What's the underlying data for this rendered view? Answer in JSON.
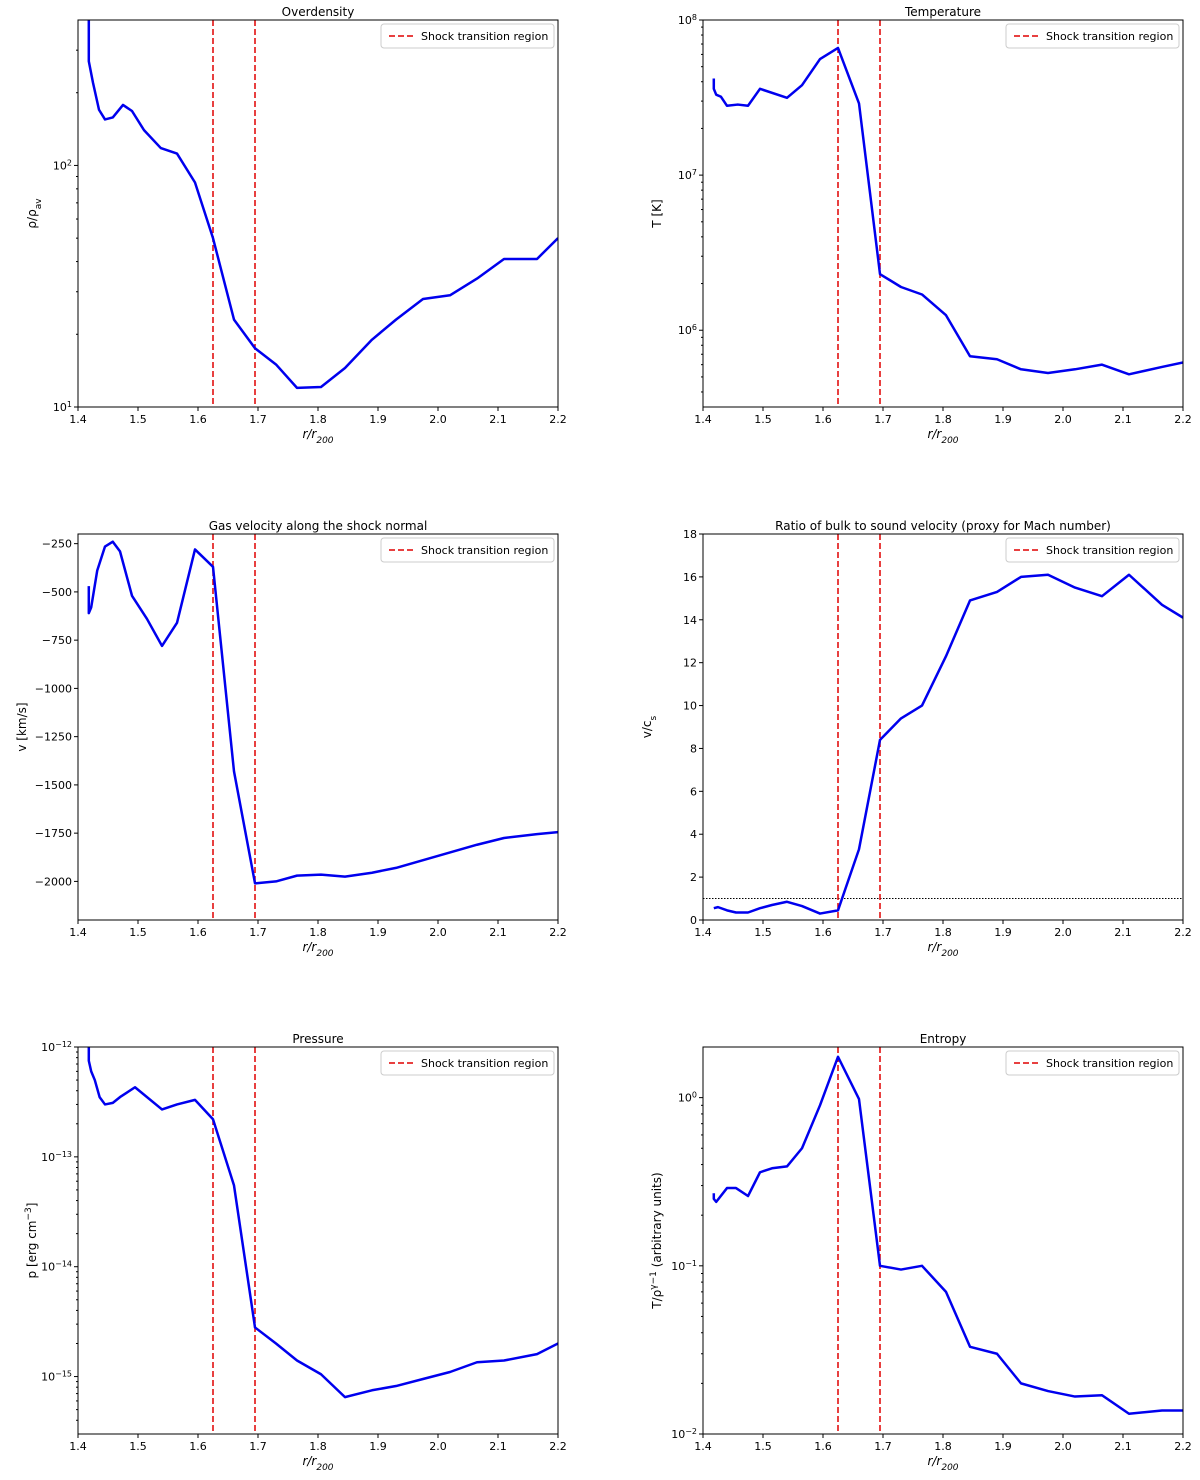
{
  "chart_data": [
    {
      "id": "overdensity",
      "type": "line",
      "title": "Overdensity",
      "xlabel": "r/r_{200}",
      "ylabel": "ρ/ρ_{av}",
      "xscale": "linear",
      "yscale": "log",
      "xlim": [
        1.4,
        2.2
      ],
      "ylim": [
        10,
        400
      ],
      "xticks": [
        1.4,
        1.5,
        1.6,
        1.7,
        1.8,
        1.9,
        2.0,
        2.1,
        2.2
      ],
      "yticks": [
        {
          "value": 10,
          "label": "10^1"
        },
        {
          "value": 100,
          "label": "10^2"
        }
      ],
      "legend": {
        "label": "Shock transition region",
        "placement": "top-right",
        "color": "#e00000"
      },
      "shock_lines": [
        1.625,
        1.695
      ],
      "color": "#0000ee",
      "x": [
        1.418,
        1.418,
        1.425,
        1.435,
        1.445,
        1.458,
        1.475,
        1.49,
        1.51,
        1.538,
        1.565,
        1.595,
        1.625,
        1.66,
        1.695,
        1.73,
        1.765,
        1.805,
        1.845,
        1.89,
        1.93,
        1.975,
        2.02,
        2.065,
        2.11,
        2.165,
        2.2
      ],
      "y": [
        420,
        270,
        220,
        170,
        155,
        158,
        178,
        168,
        140,
        118,
        112,
        85,
        50,
        23,
        17.5,
        15,
        12,
        12.1,
        14.5,
        19,
        23,
        28,
        29,
        34,
        41,
        41,
        50
      ]
    },
    {
      "id": "temperature",
      "type": "line",
      "title": "Temperature",
      "xlabel": "r/r_{200}",
      "ylabel": "T [K]",
      "xscale": "linear",
      "yscale": "log",
      "xlim": [
        1.4,
        2.2
      ],
      "ylim": [
        320000,
        100000000
      ],
      "xticks": [
        1.4,
        1.5,
        1.6,
        1.7,
        1.8,
        1.9,
        2.0,
        2.1,
        2.2
      ],
      "yticks": [
        {
          "value": 1000000,
          "label": "10^6"
        },
        {
          "value": 10000000,
          "label": "10^7"
        },
        {
          "value": 100000000,
          "label": "10^8"
        }
      ],
      "legend": {
        "label": "Shock transition region",
        "placement": "top-right",
        "color": "#e00000"
      },
      "shock_lines": [
        1.625,
        1.695
      ],
      "color": "#0000ee",
      "x": [
        1.418,
        1.418,
        1.422,
        1.43,
        1.44,
        1.458,
        1.475,
        1.495,
        1.54,
        1.565,
        1.595,
        1.625,
        1.66,
        1.695,
        1.73,
        1.765,
        1.805,
        1.845,
        1.89,
        1.93,
        1.975,
        2.02,
        2.065,
        2.11,
        2.165,
        2.2
      ],
      "y": [
        42000000,
        36000000,
        33000000,
        32000000,
        28000000,
        28500000,
        28000000,
        36000000,
        31500000,
        38000000,
        56000000,
        66000000,
        29000000,
        2300000,
        1900000,
        1700000,
        1250000,
        680000,
        650000,
        560000,
        530000,
        560000,
        600000,
        520000,
        580000,
        620000
      ]
    },
    {
      "id": "velocity",
      "type": "line",
      "title": "Gas velocity along the shock normal",
      "xlabel": "r/r_{200}",
      "ylabel": "v [km/s]",
      "xscale": "linear",
      "yscale": "linear",
      "xlim": [
        1.4,
        2.2
      ],
      "ylim": [
        -2200,
        -200
      ],
      "xticks": [
        1.4,
        1.5,
        1.6,
        1.7,
        1.8,
        1.9,
        2.0,
        2.1,
        2.2
      ],
      "yticks": [
        {
          "value": -2000,
          "label": "−2000"
        },
        {
          "value": -1750,
          "label": "−1750"
        },
        {
          "value": -1500,
          "label": "−1500"
        },
        {
          "value": -1250,
          "label": "−1250"
        },
        {
          "value": -1000,
          "label": "−1000"
        },
        {
          "value": -750,
          "label": "−750"
        },
        {
          "value": -500,
          "label": "−500"
        },
        {
          "value": -250,
          "label": "−250"
        }
      ],
      "legend": {
        "label": "Shock transition region",
        "placement": "top-right",
        "color": "#e00000"
      },
      "shock_lines": [
        1.625,
        1.695
      ],
      "color": "#0000ee",
      "x": [
        1.418,
        1.418,
        1.422,
        1.432,
        1.445,
        1.458,
        1.47,
        1.49,
        1.515,
        1.54,
        1.565,
        1.595,
        1.625,
        1.66,
        1.695,
        1.73,
        1.765,
        1.805,
        1.845,
        1.89,
        1.93,
        1.975,
        2.02,
        2.065,
        2.11,
        2.165,
        2.2
      ],
      "y": [
        -470,
        -610,
        -580,
        -390,
        -265,
        -240,
        -290,
        -520,
        -640,
        -780,
        -660,
        -280,
        -370,
        -1430,
        -2010,
        -2000,
        -1970,
        -1965,
        -1975,
        -1955,
        -1930,
        -1890,
        -1850,
        -1810,
        -1775,
        -1755,
        -1745
      ]
    },
    {
      "id": "mach",
      "type": "line",
      "title": "Ratio of bulk to sound velocity (proxy for Mach number)",
      "xlabel": "r/r_{200}",
      "ylabel": "v/c_{s}",
      "xscale": "linear",
      "yscale": "linear",
      "xlim": [
        1.4,
        2.2
      ],
      "ylim": [
        0,
        18
      ],
      "xticks": [
        1.4,
        1.5,
        1.6,
        1.7,
        1.8,
        1.9,
        2.0,
        2.1,
        2.2
      ],
      "yticks": [
        {
          "value": 0,
          "label": "0"
        },
        {
          "value": 2,
          "label": "2"
        },
        {
          "value": 4,
          "label": "4"
        },
        {
          "value": 6,
          "label": "6"
        },
        {
          "value": 8,
          "label": "8"
        },
        {
          "value": 10,
          "label": "10"
        },
        {
          "value": 12,
          "label": "12"
        },
        {
          "value": 14,
          "label": "14"
        },
        {
          "value": 16,
          "label": "16"
        },
        {
          "value": 18,
          "label": "18"
        }
      ],
      "legend": {
        "label": "Shock transition region",
        "placement": "top-right",
        "color": "#e00000"
      },
      "shock_lines": [
        1.625,
        1.695
      ],
      "reference_line": 1.0,
      "color": "#0000ee",
      "x": [
        1.418,
        1.425,
        1.44,
        1.455,
        1.475,
        1.495,
        1.515,
        1.54,
        1.565,
        1.595,
        1.625,
        1.66,
        1.695,
        1.73,
        1.765,
        1.805,
        1.845,
        1.89,
        1.93,
        1.975,
        2.02,
        2.065,
        2.11,
        2.165,
        2.2
      ],
      "y": [
        0.55,
        0.6,
        0.45,
        0.35,
        0.35,
        0.55,
        0.7,
        0.85,
        0.65,
        0.3,
        0.45,
        3.3,
        8.4,
        9.4,
        10.0,
        12.3,
        14.9,
        15.3,
        16.0,
        16.1,
        15.5,
        15.1,
        16.1,
        14.7,
        14.1
      ]
    },
    {
      "id": "pressure",
      "type": "line",
      "title": "Pressure",
      "xlabel": "r/r_{200}",
      "ylabel": "p [erg cm^{−3}]",
      "xscale": "linear",
      "yscale": "log",
      "xlim": [
        1.4,
        2.2
      ],
      "ylim": [
        3e-16,
        1e-12
      ],
      "xticks": [
        1.4,
        1.5,
        1.6,
        1.7,
        1.8,
        1.9,
        2.0,
        2.1,
        2.2
      ],
      "yticks": [
        {
          "value": 1e-15,
          "label": "10^{−15}"
        },
        {
          "value": 1e-14,
          "label": "10^{−14}"
        },
        {
          "value": 1e-13,
          "label": "10^{−13}"
        },
        {
          "value": 1e-12,
          "label": "10^{−12}"
        }
      ],
      "legend": {
        "label": "Shock transition region",
        "placement": "top-right",
        "color": "#e00000"
      },
      "shock_lines": [
        1.625,
        1.695
      ],
      "color": "#0000ee",
      "x": [
        1.418,
        1.418,
        1.422,
        1.428,
        1.436,
        1.445,
        1.458,
        1.47,
        1.495,
        1.54,
        1.565,
        1.595,
        1.625,
        1.66,
        1.695,
        1.73,
        1.765,
        1.805,
        1.845,
        1.89,
        1.93,
        1.975,
        2.02,
        2.065,
        2.11,
        2.165,
        2.2
      ],
      "y": [
        1.1e-12,
        7.5e-13,
        6e-13,
        5e-13,
        3.5e-13,
        3e-13,
        3.1e-13,
        3.5e-13,
        4.3e-13,
        2.7e-13,
        3e-13,
        3.3e-13,
        2.2e-13,
        5.5e-14,
        2.8e-15,
        2e-15,
        1.4e-15,
        1.05e-15,
        6.5e-16,
        7.5e-16,
        8.2e-16,
        9.5e-16,
        1.1e-15,
        1.35e-15,
        1.4e-15,
        1.6e-15,
        2e-15
      ]
    },
    {
      "id": "entropy",
      "type": "line",
      "title": "Entropy",
      "xlabel": "r/r_{200}",
      "ylabel": "T/ρ^{γ−1} (arbitrary units)",
      "xscale": "linear",
      "yscale": "log",
      "xlim": [
        1.4,
        2.2
      ],
      "ylim": [
        0.01,
        2.0
      ],
      "xticks": [
        1.4,
        1.5,
        1.6,
        1.7,
        1.8,
        1.9,
        2.0,
        2.1,
        2.2
      ],
      "yticks": [
        {
          "value": 0.01,
          "label": "10^{−2}"
        },
        {
          "value": 0.1,
          "label": "10^{−1}"
        },
        {
          "value": 1,
          "label": "10^0"
        }
      ],
      "legend": {
        "label": "Shock transition region",
        "placement": "top-right",
        "color": "#e00000"
      },
      "shock_lines": [
        1.625,
        1.695
      ],
      "color": "#0000ee",
      "x": [
        1.418,
        1.418,
        1.422,
        1.44,
        1.455,
        1.475,
        1.495,
        1.515,
        1.54,
        1.565,
        1.595,
        1.625,
        1.66,
        1.695,
        1.73,
        1.765,
        1.805,
        1.845,
        1.89,
        1.93,
        1.975,
        2.02,
        2.065,
        2.11,
        2.165,
        2.2
      ],
      "y": [
        0.27,
        0.25,
        0.24,
        0.29,
        0.29,
        0.26,
        0.36,
        0.38,
        0.39,
        0.5,
        0.9,
        1.75,
        0.98,
        0.1,
        0.095,
        0.1,
        0.07,
        0.033,
        0.03,
        0.02,
        0.018,
        0.0167,
        0.017,
        0.0132,
        0.0138,
        0.0138
      ]
    }
  ]
}
